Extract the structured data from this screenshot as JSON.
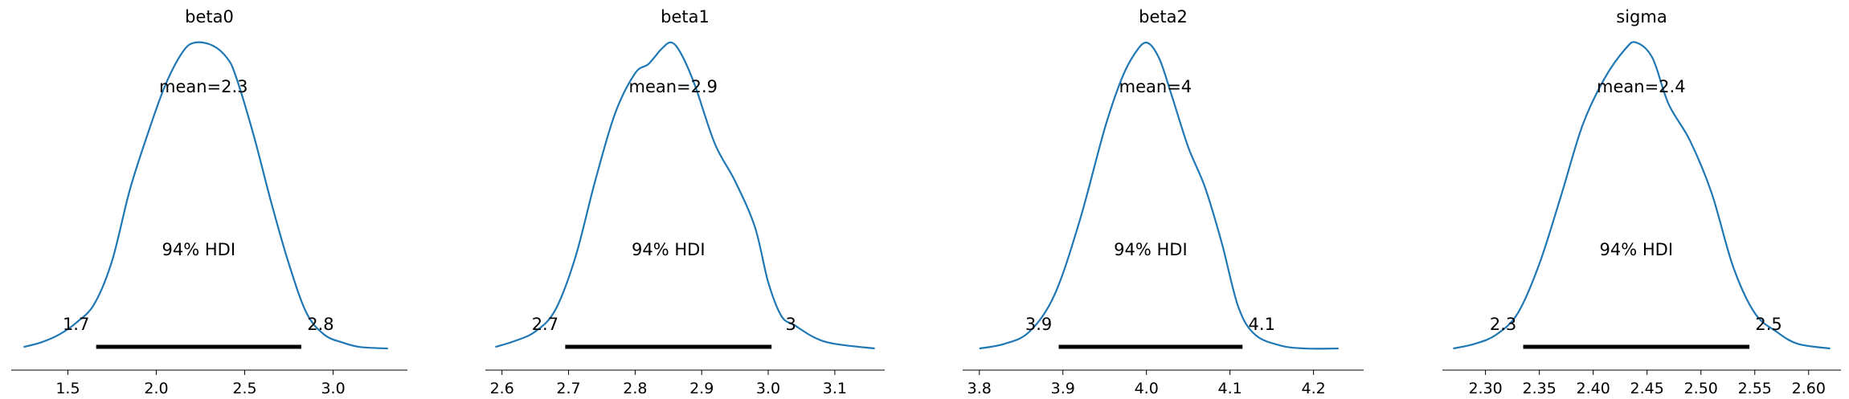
{
  "chart_data": [
    {
      "type": "area",
      "title": "beta0",
      "mean_label": "mean=2.3",
      "hdi_label": "94% HDI",
      "hdi": [
        1.66,
        2.82
      ],
      "hdi_low_label": "1.7",
      "hdi_high_label": "2.8",
      "xlim": [
        1.18,
        3.42
      ],
      "xticks": [
        1.5,
        2.0,
        2.5,
        3.0
      ],
      "xtick_labels": [
        "1.5",
        "2.0",
        "2.5",
        "3.0"
      ],
      "ylim": [
        0,
        1.1
      ],
      "density": [
        [
          1.25,
          0.01
        ],
        [
          1.35,
          0.025
        ],
        [
          1.45,
          0.05
        ],
        [
          1.55,
          0.09
        ],
        [
          1.65,
          0.15
        ],
        [
          1.75,
          0.29
        ],
        [
          1.85,
          0.52
        ],
        [
          1.95,
          0.7
        ],
        [
          2.05,
          0.86
        ],
        [
          2.15,
          0.97
        ],
        [
          2.22,
          1.0
        ],
        [
          2.32,
          0.99
        ],
        [
          2.4,
          0.95
        ],
        [
          2.45,
          0.89
        ],
        [
          2.55,
          0.7
        ],
        [
          2.65,
          0.48
        ],
        [
          2.75,
          0.28
        ],
        [
          2.85,
          0.12
        ],
        [
          2.95,
          0.05
        ],
        [
          3.05,
          0.025
        ],
        [
          3.15,
          0.01
        ],
        [
          3.31,
          0.005
        ]
      ]
    },
    {
      "type": "area",
      "title": "beta1",
      "mean_label": "mean=2.9",
      "hdi_label": "94% HDI",
      "hdi": [
        2.695,
        3.005
      ],
      "hdi_low_label": "2.7",
      "hdi_high_label": "3",
      "xlim": [
        2.575,
        3.175
      ],
      "xticks": [
        2.6,
        2.7,
        2.8,
        2.9,
        3.0,
        3.1
      ],
      "xtick_labels": [
        "2.6",
        "2.7",
        "2.8",
        "2.9",
        "3.0",
        "3.1"
      ],
      "ylim": [
        0,
        1.1
      ],
      "density": [
        [
          2.59,
          0.01
        ],
        [
          2.62,
          0.03
        ],
        [
          2.65,
          0.06
        ],
        [
          2.68,
          0.13
        ],
        [
          2.71,
          0.3
        ],
        [
          2.74,
          0.55
        ],
        [
          2.77,
          0.77
        ],
        [
          2.8,
          0.9
        ],
        [
          2.82,
          0.93
        ],
        [
          2.84,
          0.98
        ],
        [
          2.855,
          1.0
        ],
        [
          2.87,
          0.96
        ],
        [
          2.89,
          0.86
        ],
        [
          2.92,
          0.67
        ],
        [
          2.95,
          0.55
        ],
        [
          2.98,
          0.4
        ],
        [
          3.0,
          0.22
        ],
        [
          3.02,
          0.11
        ],
        [
          3.04,
          0.08
        ],
        [
          3.07,
          0.04
        ],
        [
          3.1,
          0.02
        ],
        [
          3.16,
          0.005
        ]
      ]
    },
    {
      "type": "area",
      "title": "beta2",
      "mean_label": "mean=4",
      "hdi_label": "94% HDI",
      "hdi": [
        3.895,
        4.115
      ],
      "hdi_low_label": "3.9",
      "hdi_high_label": "4.1",
      "xlim": [
        3.78,
        4.26
      ],
      "xticks": [
        3.8,
        3.9,
        4.0,
        4.1,
        4.2
      ],
      "xtick_labels": [
        "3.8",
        "3.9",
        "4.0",
        "4.1",
        "4.2"
      ],
      "ylim": [
        0,
        1.1
      ],
      "density": [
        [
          3.8,
          0.005
        ],
        [
          3.83,
          0.02
        ],
        [
          3.86,
          0.06
        ],
        [
          3.89,
          0.18
        ],
        [
          3.92,
          0.42
        ],
        [
          3.95,
          0.72
        ],
        [
          3.97,
          0.88
        ],
        [
          3.985,
          0.96
        ],
        [
          4.0,
          1.0
        ],
        [
          4.015,
          0.95
        ],
        [
          4.03,
          0.83
        ],
        [
          4.05,
          0.66
        ],
        [
          4.07,
          0.53
        ],
        [
          4.09,
          0.35
        ],
        [
          4.11,
          0.14
        ],
        [
          4.13,
          0.05
        ],
        [
          4.16,
          0.015
        ],
        [
          4.19,
          0.005
        ],
        [
          4.23,
          0.005
        ]
      ]
    },
    {
      "type": "area",
      "title": "sigma",
      "mean_label": "mean=2.4",
      "hdi_label": "94% HDI",
      "hdi": [
        2.335,
        2.545
      ],
      "hdi_low_label": "2.3",
      "hdi_high_label": "2.5",
      "xlim": [
        2.26,
        2.63
      ],
      "xticks": [
        2.3,
        2.35,
        2.4,
        2.45,
        2.5,
        2.55,
        2.6
      ],
      "xtick_labels": [
        "2.30",
        "2.35",
        "2.40",
        "2.45",
        "2.50",
        "2.55",
        "2.60"
      ],
      "ylim": [
        0,
        1.1
      ],
      "density": [
        [
          2.27,
          0.005
        ],
        [
          2.29,
          0.02
        ],
        [
          2.31,
          0.05
        ],
        [
          2.33,
          0.12
        ],
        [
          2.35,
          0.28
        ],
        [
          2.37,
          0.5
        ],
        [
          2.39,
          0.73
        ],
        [
          2.41,
          0.88
        ],
        [
          2.43,
          0.98
        ],
        [
          2.44,
          1.0
        ],
        [
          2.455,
          0.95
        ],
        [
          2.47,
          0.8
        ],
        [
          2.49,
          0.68
        ],
        [
          2.51,
          0.51
        ],
        [
          2.53,
          0.27
        ],
        [
          2.55,
          0.12
        ],
        [
          2.57,
          0.06
        ],
        [
          2.59,
          0.02
        ],
        [
          2.62,
          0.005
        ]
      ]
    }
  ],
  "colors": {
    "line": "#1f77b4",
    "hdi_bar": "#000000",
    "text": "#000000",
    "axis": "#000000"
  }
}
